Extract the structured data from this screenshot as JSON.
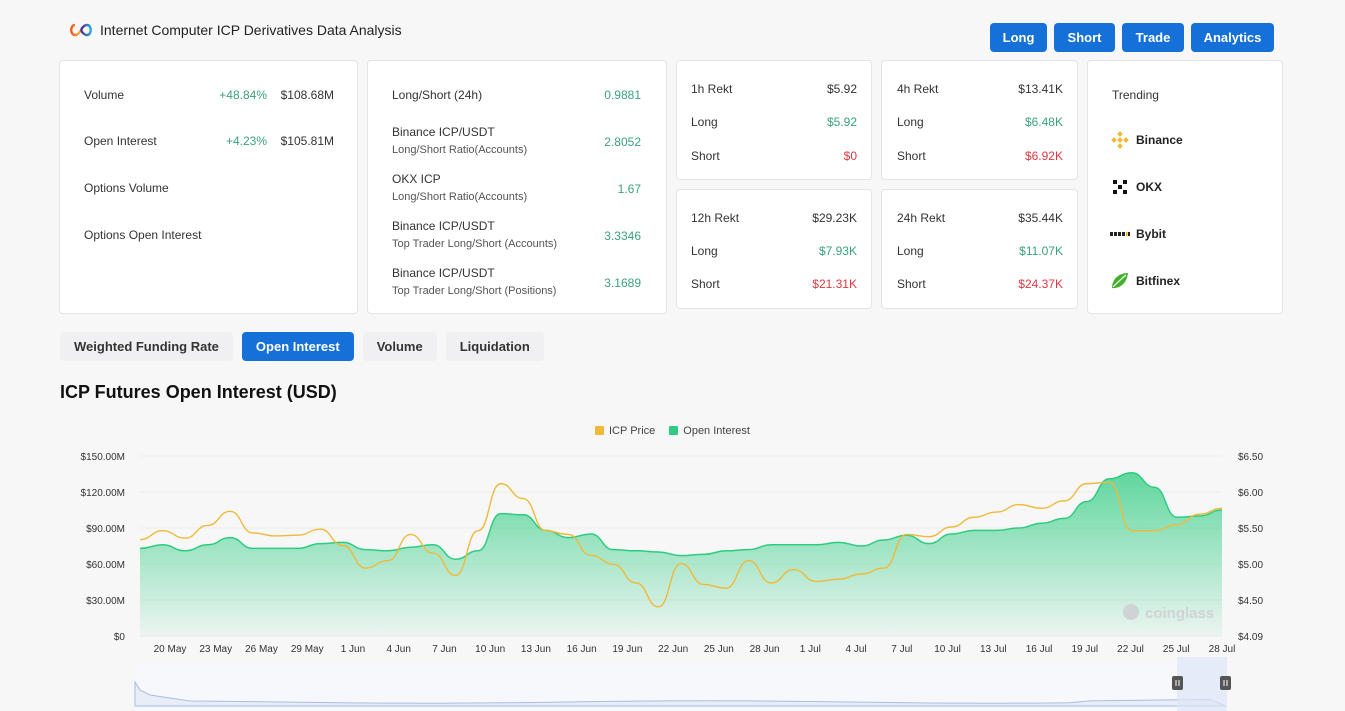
{
  "header": {
    "title": "Internet Computer ICP Derivatives Data Analysis"
  },
  "top_buttons": [
    "Long",
    "Short",
    "Trade",
    "Analytics"
  ],
  "stats": {
    "volume_label": "Volume",
    "volume_change": "+48.84%",
    "volume_value": "$108.68M",
    "oi_label": "Open Interest",
    "oi_change": "+4.23%",
    "oi_value": "$105.81M",
    "options_volume_label": "Options Volume",
    "options_oi_label": "Options Open Interest"
  },
  "ratios": [
    {
      "title": "Long/Short (24h)",
      "sub": "",
      "value": "0.9881"
    },
    {
      "title": "Binance ICP/USDT",
      "sub": "Long/Short Ratio(Accounts)",
      "value": "2.8052"
    },
    {
      "title": "OKX ICP",
      "sub": "Long/Short Ratio(Accounts)",
      "value": "1.67"
    },
    {
      "title": "Binance ICP/USDT",
      "sub": "Top Trader Long/Short (Accounts)",
      "value": "3.3346"
    },
    {
      "title": "Binance ICP/USDT",
      "sub": "Top Trader Long/Short (Positions)",
      "value": "3.1689"
    }
  ],
  "rekt": [
    {
      "label": "1h Rekt",
      "total": "$5.92",
      "long_label": "Long",
      "long": "$5.92",
      "short_label": "Short",
      "short": "$0"
    },
    {
      "label": "4h Rekt",
      "total": "$13.41K",
      "long_label": "Long",
      "long": "$6.48K",
      "short_label": "Short",
      "short": "$6.92K"
    },
    {
      "label": "12h Rekt",
      "total": "$29.23K",
      "long_label": "Long",
      "long": "$7.93K",
      "short_label": "Short",
      "short": "$21.31K"
    },
    {
      "label": "24h Rekt",
      "total": "$35.44K",
      "long_label": "Long",
      "long": "$11.07K",
      "short_label": "Short",
      "short": "$24.37K"
    }
  ],
  "trending": {
    "title": "Trending",
    "items": [
      {
        "name": "Binance",
        "icon": "binance-icon"
      },
      {
        "name": "OKX",
        "icon": "okx-icon"
      },
      {
        "name": "Bybit",
        "icon": "bybit-icon"
      },
      {
        "name": "Bitfinex",
        "icon": "bitfinex-icon"
      }
    ]
  },
  "tabs": [
    "Weighted Funding Rate",
    "Open Interest",
    "Volume",
    "Liquidation"
  ],
  "active_tab": "Open Interest",
  "colors": {
    "accent": "#1570d8",
    "oi": "#2ecc80",
    "price": "#f0b93a",
    "up": "#3ba27a",
    "down": "#e0383e"
  },
  "chart_data": {
    "type": "area",
    "title": "ICP Futures Open Interest (USD)",
    "legend": [
      "ICP Price",
      "Open Interest"
    ],
    "legend_position": "top-center",
    "watermark": "coinglass",
    "left_axis": {
      "ticks": [
        "$0",
        "$30.00M",
        "$60.00M",
        "$90.00M",
        "$120.00M",
        "$150.00M"
      ],
      "range": [
        0,
        150
      ]
    },
    "right_axis": {
      "ticks": [
        "$4.09",
        "$4.50",
        "$5.00",
        "$5.50",
        "$6.00",
        "$6.50"
      ],
      "range": [
        4.09,
        6.5
      ]
    },
    "x_ticks": [
      "20 May",
      "23 May",
      "26 May",
      "29 May",
      "1 Jun",
      "4 Jun",
      "7 Jun",
      "10 Jun",
      "13 Jun",
      "16 Jun",
      "19 Jun",
      "22 Jun",
      "25 Jun",
      "28 Jun",
      "1 Jul",
      "4 Jul",
      "7 Jul",
      "10 Jul",
      "13 Jul",
      "16 Jul",
      "19 Jul",
      "22 Jul",
      "25 Jul",
      "28 Jul"
    ],
    "series": [
      {
        "name": "Open Interest",
        "unit": "M USD",
        "values": [
          73,
          76,
          71,
          76,
          82,
          73,
          73,
          73,
          77,
          78,
          72,
          71,
          74,
          76,
          64,
          71,
          102,
          101,
          88,
          82,
          85,
          72,
          71,
          70,
          67,
          68,
          71,
          72,
          76,
          76,
          76,
          78,
          75,
          80,
          84,
          77,
          85,
          88,
          88,
          90,
          94,
          98,
          112,
          131,
          136,
          124,
          99,
          100,
          105
        ]
      },
      {
        "name": "ICP Price",
        "unit": "USD",
        "values": [
          5.38,
          5.5,
          5.4,
          5.57,
          5.76,
          5.47,
          5.43,
          5.44,
          5.52,
          5.3,
          5.0,
          5.1,
          5.45,
          5.2,
          4.9,
          5.5,
          6.13,
          5.93,
          5.5,
          5.45,
          5.17,
          5.05,
          4.8,
          4.48,
          5.06,
          4.78,
          4.73,
          5.1,
          4.8,
          4.98,
          4.82,
          4.85,
          4.92,
          5.0,
          5.45,
          5.42,
          5.55,
          5.68,
          5.75,
          5.85,
          5.8,
          5.9,
          6.13,
          6.15,
          5.5,
          5.5,
          5.58,
          5.72,
          5.8
        ]
      }
    ]
  }
}
